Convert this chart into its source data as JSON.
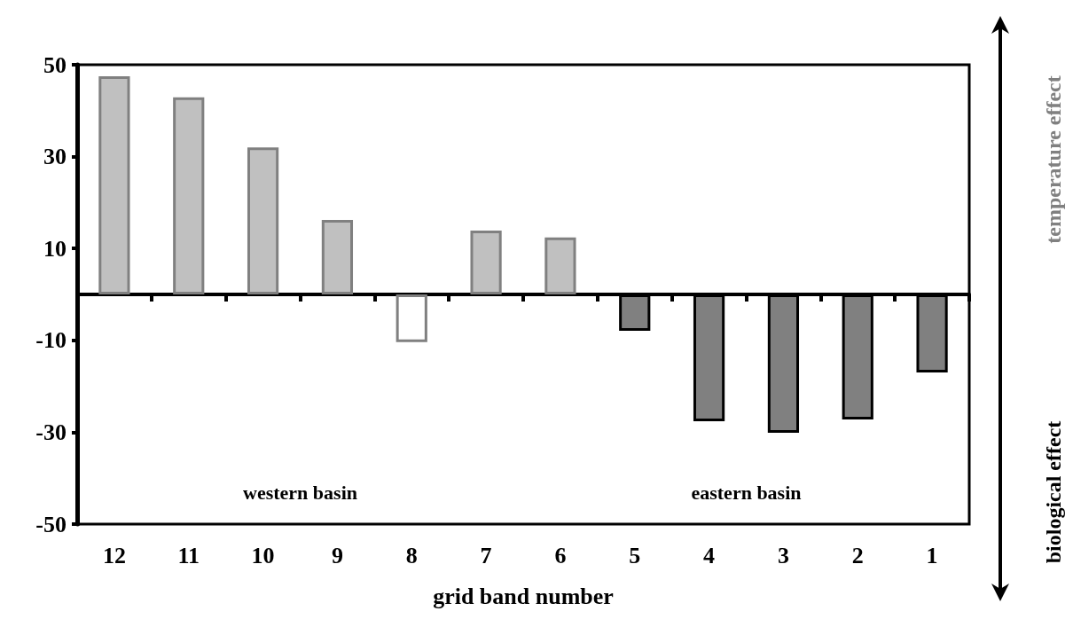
{
  "chart_data": {
    "type": "bar",
    "xlabel": "grid band number",
    "categories": [
      "12",
      "11",
      "10",
      "9",
      "8",
      "7",
      "6",
      "5",
      "4",
      "3",
      "2",
      "1"
    ],
    "values": [
      47.5,
      42.9,
      32,
      16.2,
      -10.4,
      13.9,
      12.4,
      -7.9,
      -27.6,
      -30.1,
      -27.2,
      -17
    ],
    "colors": [
      "#c0c0c0",
      "#c0c0c0",
      "#c0c0c0",
      "#c0c0c0",
      "#ffffff",
      "#c0c0c0",
      "#c0c0c0",
      "#808080",
      "#808080",
      "#808080",
      "#808080",
      "#808080"
    ],
    "ylim": [
      -50,
      50
    ],
    "yticks": [
      -50,
      -30,
      -10,
      10,
      30,
      50
    ],
    "grid": false,
    "annotations": [
      "western basin",
      "eastern basin",
      "temperature effect",
      "biological effect"
    ]
  }
}
